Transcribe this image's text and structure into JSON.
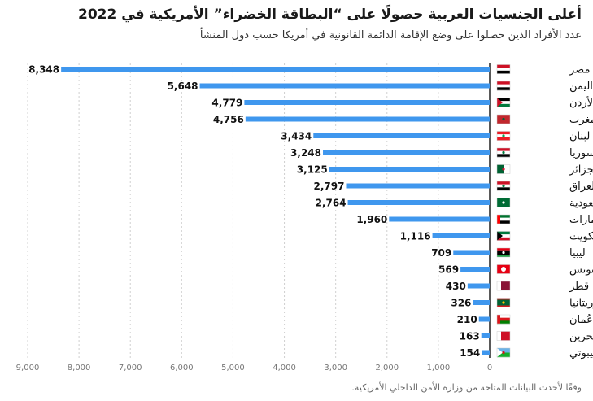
{
  "title": "أعلى الجنسيات العربية حصولًا على “البطاقة الخضراء” الأمريكية في 2022",
  "subtitle": "عدد الأفراد الذين حصلوا على وضع الإقامة الدائمة القانونية في أمريكا حسب دول المنشأ",
  "source": "وفقًا لأحدث البيانات المتاحة من وزارة الأمن الداخلي الأمريكية.",
  "colors": {
    "bar": "#3f97ee",
    "grid": "#d0d0d0",
    "axis": "#222222",
    "tick": "#777777"
  },
  "chart_data": {
    "type": "bar",
    "orientation": "horizontal",
    "x_direction": "right-to-left",
    "categories": [
      "مصر",
      "اليمن",
      "الأردن",
      "المغرب",
      "لبنان",
      "سوريا",
      "الجزائر",
      "العراق",
      "السعودية",
      "الإمارات",
      "الكويت",
      "ليبيا",
      "تونس",
      "قطر",
      "موريتانيا",
      "عُمان",
      "البحرين",
      "جيبوتي"
    ],
    "values": [
      8348,
      5648,
      4779,
      4756,
      3434,
      3248,
      3125,
      2797,
      2764,
      1960,
      1116,
      709,
      569,
      430,
      326,
      210,
      163,
      154
    ],
    "value_labels": [
      "8,348",
      "5,648",
      "4,779",
      "4,756",
      "3,434",
      "3,248",
      "3,125",
      "2,797",
      "2,764",
      "1,960",
      "1,116",
      "709",
      "569",
      "430",
      "326",
      "210",
      "163",
      "154"
    ],
    "xlim": [
      0,
      9000
    ],
    "ticks": [
      0,
      1000,
      2000,
      3000,
      4000,
      5000,
      6000,
      7000,
      8000,
      9000
    ],
    "tick_labels": [
      "0",
      "1,000",
      "2,000",
      "3,000",
      "4,000",
      "5,000",
      "6,000",
      "7,000",
      "8,000",
      "9,000"
    ],
    "grid": true,
    "flag_icons": [
      "flag-egypt-icon",
      "flag-yemen-icon",
      "flag-jordan-icon",
      "flag-morocco-icon",
      "flag-lebanon-icon",
      "flag-syria-icon",
      "flag-algeria-icon",
      "flag-iraq-icon",
      "flag-saudi-arabia-icon",
      "flag-uae-icon",
      "flag-kuwait-icon",
      "flag-libya-icon",
      "flag-tunisia-icon",
      "flag-qatar-icon",
      "flag-mauritania-icon",
      "flag-oman-icon",
      "flag-bahrain-icon",
      "flag-djibouti-icon"
    ]
  }
}
